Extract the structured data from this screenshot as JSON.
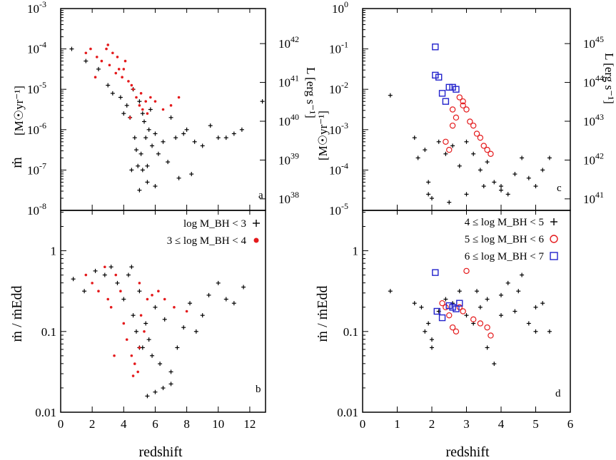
{
  "figure": {
    "xlabel": "redshift",
    "left_ylabel_top": "[M☉yr⁻¹]",
    "left_ylabel_top_sym": "ṁ",
    "left_ylabel_bottom": "ṁ / ṁEdd",
    "right_ylabel_top": "L [erg s⁻¹]",
    "panel_tags": [
      "a",
      "b",
      "c",
      "d"
    ],
    "legend_left": [
      {
        "label": "log M_BH < 3",
        "marker": "plus",
        "color": "#000000"
      },
      {
        "label": "3 ≤ log M_BH < 4",
        "marker": "dot",
        "color": "#e41a1c"
      }
    ],
    "legend_right": [
      {
        "label": "4 ≤ log M_BH < 5",
        "marker": "plus",
        "color": "#000000"
      },
      {
        "label": "5 ≤ log M_BH < 6",
        "marker": "circle",
        "color": "#e41a1c"
      },
      {
        "label": "6 ≤ log M_BH < 7",
        "marker": "square",
        "color": "#2222cc"
      }
    ]
  },
  "chart_data": [
    {
      "panel": "a",
      "type": "scatter",
      "xlim": [
        0,
        13
      ],
      "ylim_log10": [
        -8,
        -3
      ],
      "ylabel": "ṁ [M☉yr⁻¹]",
      "right_axis_label": "L [erg s⁻¹]",
      "right_ticks": [
        "10^38",
        "10^39",
        "10^40",
        "10^41",
        "10^42"
      ],
      "xticks": [
        0,
        2,
        4,
        6,
        8,
        10,
        12
      ],
      "yticks": [
        "10^-8",
        "10^-7",
        "10^-6",
        "10^-5",
        "10^-4",
        "10^-3"
      ],
      "series": [
        {
          "name": "log M_BH < 3",
          "marker": "plus",
          "color": "#000000",
          "x": [
            0.7,
            1.6,
            2.4,
            3.0,
            3.3,
            3.8,
            4.0,
            4.2,
            4.4,
            4.6,
            4.7,
            4.8,
            4.9,
            5.0,
            5.1,
            5.2,
            5.3,
            5.4,
            5.5,
            5.6,
            5.7,
            5.8,
            6.0,
            6.2,
            6.5,
            6.8,
            7.0,
            7.3,
            7.5,
            7.8,
            8.0,
            8.3,
            8.5,
            9.0,
            9.5,
            10.0,
            10.5,
            11.0,
            11.5,
            12.8,
            5.0,
            5.5,
            6.0,
            4.5,
            5.2
          ],
          "y": [
            -4.0,
            -4.3,
            -4.5,
            -4.9,
            -5.1,
            -5.2,
            -5.6,
            -5.4,
            -5.7,
            -5.0,
            -6.2,
            -6.5,
            -6.9,
            -5.3,
            -6.6,
            -7.0,
            -5.8,
            -6.2,
            -7.3,
            -6.0,
            -5.5,
            -6.4,
            -6.1,
            -6.6,
            -6.3,
            -6.8,
            -5.7,
            -6.2,
            -7.2,
            -6.1,
            -6.0,
            -7.1,
            -6.3,
            -6.4,
            -5.9,
            -6.2,
            -6.2,
            -6.1,
            -6.0,
            -5.3,
            -7.5,
            -6.9,
            -7.4,
            -7.0,
            -5.6
          ]
        },
        {
          "name": "3 ≤ log M_BH < 4",
          "marker": "dot",
          "color": "#e41a1c",
          "x": [
            1.6,
            1.9,
            2.3,
            2.6,
            2.9,
            3.1,
            3.3,
            3.5,
            3.7,
            3.9,
            4.1,
            4.3,
            4.5,
            4.6,
            4.8,
            5.0,
            5.1,
            5.2,
            5.4,
            5.5,
            5.7,
            6.0,
            6.5,
            7.0,
            7.5,
            3.0,
            3.6,
            4.0,
            4.4,
            2.2
          ],
          "y": [
            -4.1,
            -4.0,
            -4.2,
            -4.3,
            -4.0,
            -4.4,
            -4.1,
            -4.6,
            -4.5,
            -4.7,
            -4.3,
            -4.8,
            -4.9,
            -5.0,
            -5.2,
            -5.4,
            -5.1,
            -5.5,
            -5.3,
            -5.6,
            -5.2,
            -5.3,
            -5.5,
            -5.4,
            -5.2,
            -3.9,
            -4.2,
            -4.5,
            -5.7,
            -4.7
          ]
        }
      ]
    },
    {
      "panel": "b",
      "type": "scatter",
      "xlim": [
        0,
        13
      ],
      "ylim_log10": [
        -2,
        0.5
      ],
      "ylabel": "ṁ / ṁEdd",
      "xticks": [
        0,
        2,
        4,
        6,
        8,
        10,
        12
      ],
      "yticks": [
        "0.01",
        "0.1",
        "1"
      ],
      "series": [
        {
          "name": "log M_BH < 3",
          "marker": "plus",
          "color": "#000000",
          "x": [
            0.8,
            1.5,
            2.2,
            2.8,
            3.2,
            3.6,
            4.0,
            4.3,
            4.6,
            4.8,
            5.0,
            5.2,
            5.4,
            5.6,
            5.8,
            6.0,
            6.3,
            6.6,
            7.0,
            7.4,
            7.8,
            8.2,
            8.6,
            9.0,
            9.4,
            10.0,
            10.5,
            11.0,
            11.6,
            5.5,
            6.0,
            6.5,
            7.0,
            5.0,
            4.5
          ],
          "y": [
            -0.35,
            -0.5,
            -0.25,
            -0.3,
            -0.2,
            -0.4,
            -0.6,
            -0.3,
            -0.8,
            -1.0,
            -0.5,
            -1.2,
            -0.9,
            -1.1,
            -1.3,
            -0.7,
            -1.4,
            -0.85,
            -1.5,
            -1.2,
            -0.95,
            -0.65,
            -1.0,
            -0.8,
            -0.55,
            -0.4,
            -0.6,
            -0.65,
            -0.45,
            -1.8,
            -1.75,
            -1.7,
            -1.65,
            -1.2,
            -0.2
          ]
        },
        {
          "name": "3 ≤ log M_BH < 4",
          "marker": "dot",
          "color": "#e41a1c",
          "x": [
            1.6,
            2.0,
            2.4,
            2.8,
            3.0,
            3.2,
            3.5,
            3.8,
            4.0,
            4.2,
            4.5,
            4.7,
            4.9,
            5.0,
            5.1,
            5.3,
            5.5,
            5.8,
            6.2,
            6.6,
            7.2,
            8.0,
            3.4,
            4.6,
            5.0
          ],
          "y": [
            -0.3,
            -0.4,
            -0.5,
            -0.2,
            -0.6,
            -0.7,
            -0.3,
            -0.5,
            -0.9,
            -1.1,
            -1.3,
            -1.4,
            -1.5,
            -1.2,
            -0.8,
            -1.0,
            -0.6,
            -0.55,
            -0.5,
            -0.6,
            -0.7,
            -0.75,
            -1.3,
            -1.55,
            -0.4
          ]
        }
      ]
    },
    {
      "panel": "c",
      "type": "scatter",
      "xlim": [
        0,
        6
      ],
      "ylim_log10": [
        -5,
        0
      ],
      "ylabel": "ṁ [M☉yr⁻¹]",
      "right_axis_label": "L [erg s⁻¹]",
      "right_ticks": [
        "10^41",
        "10^42",
        "10^43",
        "10^44",
        "10^45"
      ],
      "xticks": [
        0,
        1,
        2,
        3,
        4,
        5,
        6
      ],
      "yticks": [
        "10^-5",
        "10^-4",
        "10^-3",
        "10^-2",
        "10^-1",
        "10^0"
      ],
      "series": [
        {
          "name": "4 ≤ log M_BH < 5",
          "marker": "plus",
          "color": "#000000",
          "x": [
            0.8,
            1.5,
            1.6,
            1.8,
            1.9,
            2.0,
            2.2,
            2.4,
            2.6,
            2.8,
            3.0,
            3.2,
            3.4,
            3.6,
            3.8,
            4.0,
            4.2,
            4.4,
            4.6,
            4.8,
            5.0,
            5.2,
            5.4,
            2.5,
            3.0,
            3.5,
            4.0,
            1.9
          ],
          "y": [
            -2.15,
            -3.2,
            -3.7,
            -3.5,
            -4.3,
            -4.7,
            -3.3,
            -3.6,
            -3.4,
            -3.9,
            -3.3,
            -3.6,
            -4.0,
            -3.8,
            -4.3,
            -4.4,
            -4.6,
            -4.1,
            -3.7,
            -4.2,
            -4.4,
            -4.0,
            -3.7,
            -4.8,
            -4.6,
            -4.4,
            -4.5,
            -4.6
          ]
        },
        {
          "name": "5 ≤ log M_BH < 6",
          "marker": "circle",
          "color": "#e41a1c",
          "x": [
            2.4,
            2.5,
            2.6,
            2.7,
            2.8,
            2.9,
            3.0,
            3.1,
            3.2,
            3.3,
            3.4,
            3.5,
            3.6,
            3.7,
            2.6,
            2.9
          ],
          "y": [
            -3.3,
            -3.5,
            -2.5,
            -2.7,
            -2.2,
            -2.3,
            -2.5,
            -2.8,
            -2.9,
            -3.1,
            -3.2,
            -3.4,
            -3.5,
            -3.6,
            -2.9,
            -2.4
          ]
        },
        {
          "name": "6 ≤ log M_BH < 7",
          "marker": "square",
          "color": "#2222cc",
          "x": [
            2.1,
            2.1,
            2.2,
            2.3,
            2.4,
            2.5,
            2.6,
            2.7
          ],
          "y": [
            -0.95,
            -1.65,
            -1.7,
            -2.1,
            -2.3,
            -1.95,
            -1.95,
            -2.0
          ]
        }
      ]
    },
    {
      "panel": "d",
      "type": "scatter",
      "xlim": [
        0,
        6
      ],
      "ylim_log10": [
        -2,
        0.5
      ],
      "ylabel": "ṁ / ṁEdd",
      "xticks": [
        0,
        1,
        2,
        3,
        4,
        5,
        6
      ],
      "yticks": [
        "0.01",
        "0.1",
        "1"
      ],
      "series": [
        {
          "name": "4 ≤ log M_BH < 5",
          "marker": "plus",
          "color": "#000000",
          "x": [
            0.8,
            1.5,
            1.7,
            1.9,
            2.0,
            2.2,
            2.4,
            2.6,
            2.8,
            3.0,
            3.2,
            3.4,
            3.6,
            3.8,
            4.0,
            4.2,
            4.4,
            4.6,
            4.8,
            5.0,
            5.2,
            5.4,
            1.8,
            2.0,
            3.3,
            3.6,
            4.0,
            4.5,
            5.0
          ],
          "y": [
            -0.5,
            -0.65,
            -0.7,
            -0.9,
            -1.1,
            -0.75,
            -0.6,
            -0.65,
            -0.5,
            -0.8,
            -0.9,
            -0.7,
            -1.2,
            -1.4,
            -0.8,
            -0.4,
            -0.75,
            -0.3,
            -0.9,
            -1.0,
            -0.65,
            -1.0,
            -1.0,
            -1.2,
            -0.5,
            -0.6,
            -0.55,
            -0.5,
            -0.7
          ]
        },
        {
          "name": "5 ≤ log M_BH < 6",
          "marker": "circle",
          "color": "#e41a1c",
          "x": [
            2.3,
            2.4,
            2.5,
            2.6,
            2.7,
            2.8,
            2.9,
            3.0,
            3.2,
            3.4,
            3.6,
            3.7
          ],
          "y": [
            -0.65,
            -0.7,
            -0.8,
            -0.95,
            -1.0,
            -0.7,
            -0.75,
            -0.25,
            -0.85,
            -0.9,
            -0.95,
            -1.05
          ]
        },
        {
          "name": "6 ≤ log M_BH < 7",
          "marker": "square",
          "color": "#2222cc",
          "x": [
            2.1,
            2.15,
            2.3,
            2.5,
            2.6,
            2.7,
            2.8
          ],
          "y": [
            -0.27,
            -0.75,
            -0.83,
            -0.68,
            -0.7,
            -0.72,
            -0.65
          ]
        }
      ]
    }
  ]
}
